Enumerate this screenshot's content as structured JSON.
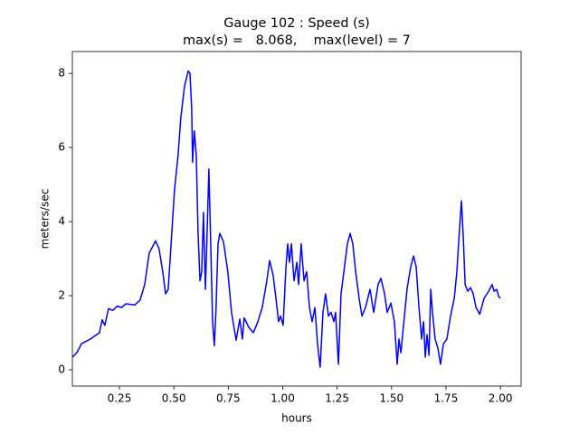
{
  "chart_data": {
    "type": "line",
    "title": "Gauge 102 : Speed (s)",
    "subtitle": "max(s) =   8.068,    max(level) = 7",
    "x_label": "hours",
    "y_label": "meters/sec",
    "color": "#0000ff",
    "x": [
      0.034,
      0.054,
      0.067,
      0.075,
      0.117,
      0.158,
      0.171,
      0.183,
      0.2,
      0.22,
      0.24,
      0.26,
      0.28,
      0.32,
      0.345,
      0.366,
      0.387,
      0.416,
      0.432,
      0.449,
      0.462,
      0.474,
      0.49,
      0.503,
      0.52,
      0.532,
      0.549,
      0.566,
      0.574,
      0.582,
      0.586,
      0.594,
      0.603,
      0.611,
      0.62,
      0.628,
      0.636,
      0.645,
      0.653,
      0.661,
      0.669,
      0.678,
      0.686,
      0.694,
      0.703,
      0.711,
      0.728,
      0.748,
      0.765,
      0.786,
      0.803,
      0.815,
      0.823,
      0.844,
      0.865,
      0.886,
      0.906,
      0.927,
      0.94,
      0.956,
      0.969,
      0.981,
      0.99,
      1.002,
      1.015,
      1.023,
      1.031,
      1.04,
      1.052,
      1.065,
      1.073,
      1.085,
      1.098,
      1.11,
      1.123,
      1.135,
      1.148,
      1.16,
      1.172,
      1.185,
      1.197,
      1.21,
      1.222,
      1.235,
      1.243,
      1.256,
      1.268,
      1.281,
      1.297,
      1.31,
      1.322,
      1.335,
      1.351,
      1.364,
      1.38,
      1.401,
      1.418,
      1.438,
      1.451,
      1.468,
      1.48,
      1.497,
      1.513,
      1.526,
      1.534,
      1.543,
      1.555,
      1.571,
      1.588,
      1.601,
      1.613,
      1.626,
      1.638,
      1.647,
      1.655,
      1.663,
      1.672,
      1.68,
      1.688,
      1.7,
      1.713,
      1.725,
      1.738,
      1.754,
      1.771,
      1.788,
      1.8,
      1.813,
      1.821,
      1.829,
      1.838,
      1.85,
      1.863,
      1.875,
      1.888,
      1.905,
      1.925,
      1.946,
      1.962,
      1.971,
      1.983,
      1.992,
      2.0
    ],
    "values": [
      0.34,
      0.46,
      0.6,
      0.7,
      0.83,
      1.0,
      1.35,
      1.2,
      1.65,
      1.6,
      1.72,
      1.68,
      1.78,
      1.75,
      1.88,
      2.3,
      3.15,
      3.48,
      3.27,
      2.65,
      2.05,
      2.17,
      3.63,
      4.85,
      5.83,
      6.8,
      7.65,
      8.068,
      8.0,
      7.05,
      5.6,
      6.45,
      5.8,
      3.75,
      2.4,
      2.65,
      4.25,
      2.17,
      3.75,
      5.42,
      3.5,
      1.3,
      0.65,
      1.68,
      3.4,
      3.68,
      3.45,
      2.65,
      1.55,
      0.8,
      1.37,
      0.83,
      1.4,
      1.15,
      1.0,
      1.3,
      1.68,
      2.4,
      2.95,
      2.55,
      1.93,
      1.3,
      1.45,
      1.2,
      2.78,
      3.4,
      2.9,
      3.4,
      2.4,
      2.9,
      2.3,
      3.4,
      2.4,
      2.65,
      1.68,
      1.3,
      1.68,
      0.7,
      0.07,
      1.55,
      2.05,
      1.45,
      1.55,
      1.3,
      1.55,
      0.15,
      2.05,
      2.65,
      3.4,
      3.68,
      3.4,
      2.65,
      1.93,
      1.45,
      1.68,
      2.17,
      1.55,
      2.3,
      2.47,
      2.05,
      1.55,
      1.8,
      1.3,
      0.15,
      0.83,
      0.46,
      1.2,
      2.17,
      2.78,
      3.07,
      2.78,
      1.68,
      0.83,
      1.3,
      0.34,
      0.95,
      0.39,
      2.17,
      1.55,
      0.83,
      0.58,
      0.15,
      0.7,
      0.83,
      1.45,
      1.93,
      2.65,
      3.88,
      4.56,
      3.63,
      2.3,
      2.12,
      2.22,
      2.05,
      1.68,
      1.5,
      1.93,
      2.12,
      2.3,
      2.12,
      2.17,
      1.98,
      1.93
    ],
    "xlim": [
      0.034,
      2.095
    ],
    "ylim": [
      -0.44,
      8.59
    ],
    "xticks": [
      {
        "value": 0.25,
        "label": "0.25"
      },
      {
        "value": 0.5,
        "label": "0.50"
      },
      {
        "value": 0.75,
        "label": "0.75"
      },
      {
        "value": 1.0,
        "label": "1.00"
      },
      {
        "value": 1.25,
        "label": "1.25"
      },
      {
        "value": 1.5,
        "label": "1.50"
      },
      {
        "value": 1.75,
        "label": "1.75"
      },
      {
        "value": 2.0,
        "label": "2.00"
      }
    ],
    "yticks": [
      0,
      2,
      4,
      6,
      8
    ]
  }
}
